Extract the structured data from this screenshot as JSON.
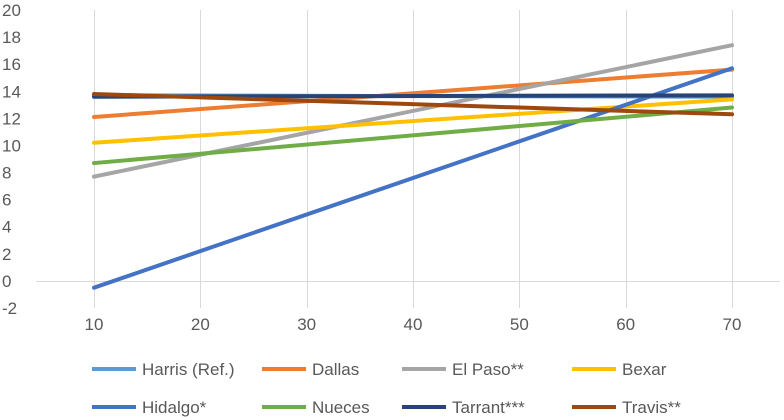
{
  "chart_data": {
    "type": "line",
    "title": "",
    "xlabel": "",
    "ylabel": "",
    "x": [
      10,
      70
    ],
    "x_ticks": [
      "10",
      "20",
      "30",
      "40",
      "50",
      "60",
      "70"
    ],
    "y_ticks": [
      "-2",
      "0",
      "2",
      "4",
      "6",
      "8",
      "10",
      "12",
      "14",
      "16",
      "18",
      "20"
    ],
    "xlim": [
      10,
      70
    ],
    "ylim": [
      -2,
      20
    ],
    "grid": "vertical",
    "legend_position": "bottom",
    "series": [
      {
        "name": "Harris (Ref.)",
        "color": "#5B9BD5",
        "values": [
          13.7,
          13.6
        ]
      },
      {
        "name": "Dallas",
        "color": "#ED7D31",
        "values": [
          12.1,
          15.6
        ]
      },
      {
        "name": "El Paso**",
        "color": "#A5A5A5",
        "values": [
          7.7,
          17.4
        ]
      },
      {
        "name": "Bexar",
        "color": "#FFC000",
        "values": [
          10.2,
          13.4
        ]
      },
      {
        "name": "Hidalgo*",
        "color": "#4472C4",
        "values": [
          -0.5,
          15.7
        ]
      },
      {
        "name": "Nueces",
        "color": "#70AD47",
        "values": [
          8.7,
          12.8
        ]
      },
      {
        "name": "Tarrant***",
        "color": "#264478",
        "values": [
          13.6,
          13.7
        ]
      },
      {
        "name": "Travis**",
        "color": "#9E480E",
        "values": [
          13.8,
          12.3
        ]
      }
    ]
  }
}
